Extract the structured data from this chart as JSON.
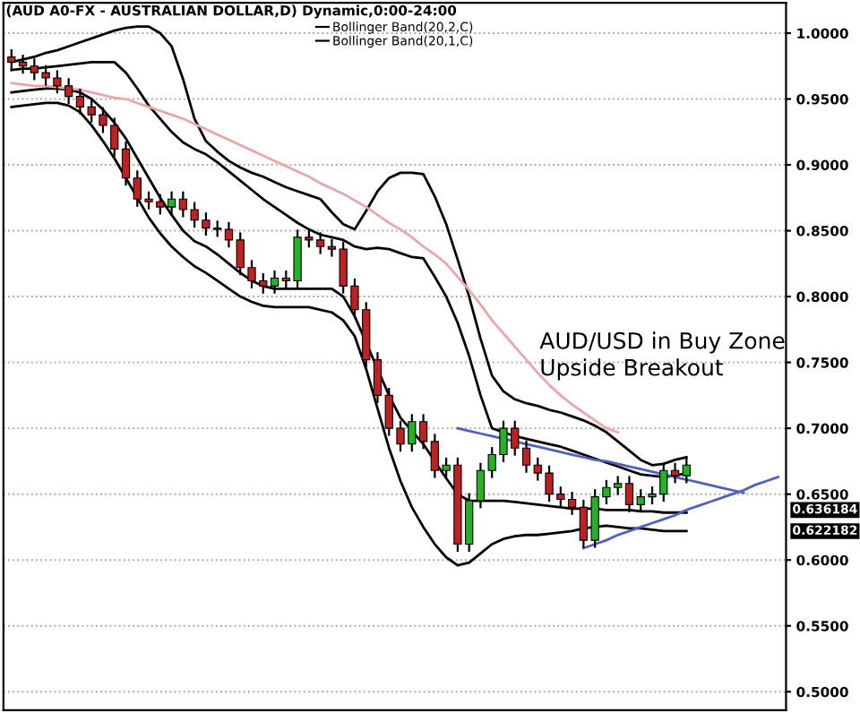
{
  "chart_data": {
    "type": "candlestick",
    "title": "(AUD A0-FX - AUSTRALIAN DOLLAR,D) Dynamic,0:00-24:00",
    "categories": [
      null,
      null,
      null,
      null,
      null,
      null,
      null,
      null,
      null,
      null,
      null,
      null,
      null,
      null,
      null,
      null,
      null,
      null,
      null,
      null,
      null,
      null,
      null,
      null,
      null,
      null,
      null,
      null,
      null,
      null,
      null,
      null,
      null,
      null,
      null,
      null,
      null,
      null,
      null,
      null,
      null,
      null,
      null,
      null,
      null,
      null,
      null,
      null,
      null,
      null,
      null,
      null,
      null,
      null,
      null,
      null,
      null,
      null,
      null,
      null,
      null,
      null,
      null,
      null,
      null,
      null,
      null,
      null
    ],
    "ohlc": [
      [
        0.982,
        0.987,
        0.973,
        0.978
      ],
      [
        0.978,
        0.983,
        0.97,
        0.975
      ],
      [
        0.975,
        0.98,
        0.965,
        0.97
      ],
      [
        0.97,
        0.975,
        0.961,
        0.966
      ],
      [
        0.966,
        0.971,
        0.955,
        0.96
      ],
      [
        0.96,
        0.965,
        0.947,
        0.952
      ],
      [
        0.952,
        0.957,
        0.939,
        0.944
      ],
      [
        0.944,
        0.949,
        0.933,
        0.938
      ],
      [
        0.938,
        0.943,
        0.925,
        0.93
      ],
      [
        0.93,
        0.935,
        0.907,
        0.912
      ],
      [
        0.912,
        0.917,
        0.885,
        0.89
      ],
      [
        0.89,
        0.895,
        0.869,
        0.874
      ],
      [
        0.874,
        0.879,
        0.867,
        0.872
      ],
      [
        0.872,
        0.877,
        0.863,
        0.868
      ],
      [
        0.868,
        0.879,
        0.863,
        0.874
      ],
      [
        0.874,
        0.879,
        0.861,
        0.866
      ],
      [
        0.866,
        0.871,
        0.853,
        0.858
      ],
      [
        0.858,
        0.863,
        0.847,
        0.852
      ],
      [
        0.852,
        0.857,
        0.846,
        0.851
      ],
      [
        0.851,
        0.856,
        0.838,
        0.843
      ],
      [
        0.843,
        0.848,
        0.817,
        0.822
      ],
      [
        0.822,
        0.827,
        0.807,
        0.812
      ],
      [
        0.812,
        0.817,
        0.803,
        0.808
      ],
      [
        0.808,
        0.819,
        0.803,
        0.814
      ],
      [
        0.814,
        0.819,
        0.807,
        0.812
      ],
      [
        0.812,
        0.85,
        0.807,
        0.845
      ],
      [
        0.845,
        0.85,
        0.838,
        0.843
      ],
      [
        0.843,
        0.848,
        0.833,
        0.838
      ],
      [
        0.838,
        0.843,
        0.831,
        0.836
      ],
      [
        0.836,
        0.841,
        0.803,
        0.808
      ],
      [
        0.808,
        0.813,
        0.785,
        0.79
      ],
      [
        0.79,
        0.795,
        0.747,
        0.752
      ],
      [
        0.752,
        0.757,
        0.72,
        0.725
      ],
      [
        0.725,
        0.73,
        0.695,
        0.7
      ],
      [
        0.7,
        0.705,
        0.683,
        0.688
      ],
      [
        0.688,
        0.71,
        0.683,
        0.705
      ],
      [
        0.705,
        0.71,
        0.685,
        0.69
      ],
      [
        0.69,
        0.695,
        0.663,
        0.668
      ],
      [
        0.668,
        0.677,
        0.663,
        0.672
      ],
      [
        0.672,
        0.677,
        0.607,
        0.612
      ],
      [
        0.612,
        0.65,
        0.607,
        0.645
      ],
      [
        0.645,
        0.673,
        0.64,
        0.668
      ],
      [
        0.668,
        0.685,
        0.663,
        0.68
      ],
      [
        0.68,
        0.705,
        0.675,
        0.7
      ],
      [
        0.7,
        0.705,
        0.68,
        0.685
      ],
      [
        0.685,
        0.69,
        0.667,
        0.672
      ],
      [
        0.672,
        0.677,
        0.661,
        0.666
      ],
      [
        0.666,
        0.671,
        0.645,
        0.65
      ],
      [
        0.65,
        0.655,
        0.641,
        0.646
      ],
      [
        0.646,
        0.651,
        0.635,
        0.64
      ],
      [
        0.64,
        0.645,
        0.61,
        0.615
      ],
      [
        0.615,
        0.653,
        0.61,
        0.648
      ],
      [
        0.648,
        0.66,
        0.643,
        0.655
      ],
      [
        0.655,
        0.663,
        0.65,
        0.658
      ],
      [
        0.658,
        0.663,
        0.637,
        0.642
      ],
      [
        0.642,
        0.653,
        0.637,
        0.648
      ],
      [
        0.648,
        0.655,
        0.643,
        0.65
      ],
      [
        0.65,
        0.673,
        0.645,
        0.668
      ],
      [
        0.668,
        0.673,
        0.659,
        0.664
      ],
      [
        0.664,
        0.677,
        0.659,
        0.672
      ],
      null,
      null,
      null,
      null,
      null,
      null,
      null,
      null
    ],
    "colors": [
      "#c0201f",
      "#c0201f",
      "#c0201f",
      "#c0201f",
      "#c0201f",
      "#c0201f",
      "#c0201f",
      "#c0201f",
      "#c0201f",
      "#c0201f",
      "#c0201f",
      "#c0201f",
      "#c0201f",
      "#c0201f",
      "#22b422",
      "#c0201f",
      "#c0201f",
      "#c0201f",
      "#c0201f",
      "#c0201f",
      "#c0201f",
      "#c0201f",
      "#c0201f",
      "#22b422",
      "#c0201f",
      "#22b422",
      "#c0201f",
      "#c0201f",
      "#c0201f",
      "#c0201f",
      "#c0201f",
      "#c0201f",
      "#c0201f",
      "#c0201f",
      "#c0201f",
      "#22b422",
      "#c0201f",
      "#c0201f",
      "#22b422",
      "#c0201f",
      "#22b422",
      "#22b422",
      "#22b422",
      "#22b422",
      "#c0201f",
      "#c0201f",
      "#c0201f",
      "#c0201f",
      "#c0201f",
      "#c0201f",
      "#c0201f",
      "#22b422",
      "#22b422",
      "#22b422",
      "#c0201f",
      "#22b422",
      "#22b422",
      "#22b422",
      "#c0201f",
      "#22b422",
      null,
      null,
      null,
      null,
      null,
      null,
      null,
      null
    ],
    "series": [
      {
        "type": "line",
        "name": "Bollinger Band(20,2,C)",
        "color": "#000000",
        "values": [
          0.978,
          0.98,
          0.982,
          0.985,
          0.987,
          0.99,
          0.993,
          0.996,
          0.999,
          1.002,
          1.004,
          1.005,
          1.005,
          1.0,
          0.99,
          0.965,
          0.935,
          0.918,
          0.91,
          0.903,
          0.898,
          0.894,
          0.891,
          0.887,
          0.883,
          0.88,
          0.877,
          0.874,
          0.864,
          0.855,
          0.851,
          0.865,
          0.88,
          0.89,
          0.894,
          0.894,
          0.893,
          0.876,
          0.855,
          0.828,
          0.8,
          0.768,
          0.74,
          0.728,
          0.722,
          0.719,
          0.717,
          0.714,
          0.712,
          0.709,
          0.706,
          0.702,
          0.697,
          0.69,
          0.683,
          0.676,
          0.672,
          0.673,
          0.676,
          0.678,
          null,
          null,
          null,
          null,
          null,
          null,
          null,
          null
        ]
      },
      {
        "type": "line",
        "name": "Bollinger Band(20,1,C)",
        "color": "#000000",
        "values": [
          0.972,
          0.973,
          0.973,
          0.974,
          0.975,
          0.976,
          0.977,
          0.978,
          0.978,
          0.978,
          0.97,
          0.958,
          0.945,
          0.935,
          0.925,
          0.917,
          0.912,
          0.908,
          0.902,
          0.895,
          0.888,
          0.881,
          0.874,
          0.868,
          0.862,
          0.856,
          0.851,
          0.847,
          0.845,
          0.843,
          0.838,
          0.836,
          0.837,
          0.836,
          0.833,
          0.83,
          0.829,
          0.815,
          0.8,
          0.78,
          0.755,
          0.725,
          0.7,
          0.697,
          0.694,
          0.692,
          0.69,
          0.688,
          0.686,
          0.683,
          0.68,
          0.677,
          0.674,
          0.671,
          0.668,
          0.665,
          0.664,
          0.663,
          0.664,
          0.666,
          null,
          null,
          null,
          null,
          null,
          null,
          null,
          null
        ]
      },
      {
        "type": "line",
        "color": "#000000",
        "values": [
          0.955,
          0.956,
          0.957,
          0.958,
          0.958,
          0.957,
          0.955,
          0.95,
          0.942,
          0.932,
          0.92,
          0.905,
          0.89,
          0.875,
          0.862,
          0.85,
          0.842,
          0.838,
          0.832,
          0.825,
          0.818,
          0.812,
          0.808,
          0.806,
          0.806,
          0.806,
          0.806,
          0.806,
          0.806,
          0.8,
          0.785,
          0.765,
          0.745,
          0.725,
          0.708,
          0.698,
          0.688,
          0.675,
          0.662,
          0.65,
          0.645,
          0.645,
          0.645,
          0.645,
          0.644,
          0.643,
          0.642,
          0.641,
          0.64,
          0.639,
          0.639,
          0.639,
          0.638,
          0.638,
          0.638,
          0.637,
          0.637,
          0.636,
          0.636,
          0.636,
          null,
          null,
          null,
          null,
          null,
          null,
          null,
          null
        ]
      },
      {
        "type": "line",
        "color": "#000000",
        "values": [
          0.944,
          0.945,
          0.946,
          0.947,
          0.947,
          0.945,
          0.94,
          0.93,
          0.918,
          0.905,
          0.89,
          0.875,
          0.86,
          0.848,
          0.838,
          0.83,
          0.823,
          0.818,
          0.812,
          0.806,
          0.8,
          0.796,
          0.793,
          0.792,
          0.792,
          0.792,
          0.792,
          0.79,
          0.788,
          0.782,
          0.77,
          0.745,
          0.715,
          0.685,
          0.66,
          0.64,
          0.625,
          0.612,
          0.602,
          0.596,
          0.598,
          0.605,
          0.612,
          0.616,
          0.618,
          0.619,
          0.619,
          0.62,
          0.621,
          0.622,
          0.624,
          0.625,
          0.626,
          0.625,
          0.624,
          0.624,
          0.623,
          0.622,
          0.622,
          0.622,
          null,
          null,
          null,
          null,
          null,
          null,
          null,
          null
        ]
      },
      {
        "type": "line",
        "color": "#e8a8a8",
        "values": [
          0.962,
          0.961,
          0.96,
          0.96,
          0.959,
          0.958,
          0.957,
          0.955,
          0.953,
          0.951,
          0.95,
          0.947,
          0.944,
          0.941,
          0.938,
          0.935,
          0.931,
          0.927,
          0.923,
          0.919,
          0.915,
          0.911,
          0.907,
          0.903,
          0.899,
          0.895,
          0.891,
          0.886,
          0.882,
          0.878,
          0.873,
          0.868,
          0.862,
          0.856,
          0.851,
          0.845,
          0.838,
          0.832,
          0.825,
          0.815,
          0.805,
          0.794,
          0.782,
          0.772,
          0.762,
          0.752,
          0.742,
          0.733,
          0.725,
          0.718,
          0.712,
          0.706,
          0.7,
          0.697,
          null,
          null,
          null,
          null,
          null,
          null,
          null,
          null,
          null,
          null,
          null,
          null,
          null,
          null
        ]
      },
      {
        "type": "line",
        "color": "#5060c0",
        "values": [
          null,
          null,
          null,
          null,
          null,
          null,
          null,
          null,
          null,
          null,
          null,
          null,
          null,
          null,
          null,
          null,
          null,
          null,
          null,
          null,
          null,
          null,
          null,
          null,
          null,
          null,
          null,
          null,
          null,
          null,
          null,
          null,
          null,
          null,
          null,
          null,
          null,
          null,
          null,
          0.7,
          0.698,
          0.696,
          0.694,
          0.692,
          0.69,
          0.688,
          0.686,
          0.684,
          0.682,
          0.68,
          0.678,
          0.676,
          0.675,
          0.673,
          0.671,
          0.669,
          0.667,
          0.665,
          0.663,
          0.661,
          0.659,
          0.657,
          0.655,
          0.653,
          0.651,
          null,
          null,
          null
        ]
      },
      {
        "type": "line",
        "color": "#5060c0",
        "values": [
          null,
          null,
          null,
          null,
          null,
          null,
          null,
          null,
          null,
          null,
          null,
          null,
          null,
          null,
          null,
          null,
          null,
          null,
          null,
          null,
          null,
          null,
          null,
          null,
          null,
          null,
          null,
          null,
          null,
          null,
          null,
          null,
          null,
          null,
          null,
          null,
          null,
          null,
          null,
          null,
          null,
          null,
          null,
          null,
          null,
          null,
          null,
          null,
          null,
          null,
          0.609,
          0.612,
          0.615,
          0.619,
          0.622,
          0.625,
          0.628,
          0.631,
          0.634,
          0.638,
          0.641,
          0.644,
          0.647,
          0.65,
          0.653,
          0.657,
          0.66,
          0.663
        ]
      }
    ],
    "ylim": [
      0.486,
      1.023
    ],
    "yticks": [
      {
        "value": 0.5,
        "label": "0.5000"
      },
      {
        "value": 0.55,
        "label": "0.5500"
      },
      {
        "value": 0.6,
        "label": "0.6000"
      },
      {
        "value": 0.65,
        "label": "0.6500"
      },
      {
        "value": 0.7,
        "label": "0.7000"
      },
      {
        "value": 0.75,
        "label": "0.7500"
      },
      {
        "value": 0.8,
        "label": "0.8000"
      },
      {
        "value": 0.85,
        "label": "0.8500"
      },
      {
        "value": 0.9,
        "label": "0.9000"
      },
      {
        "value": 0.95,
        "label": "0.9500"
      },
      {
        "value": 1.0,
        "label": "1.0000"
      }
    ],
    "grid": "y",
    "legend": "top",
    "annotations": [
      "AUD/USD in Buy Zone\nUpside Breakout",
      "0.636184",
      "0.622182"
    ]
  }
}
